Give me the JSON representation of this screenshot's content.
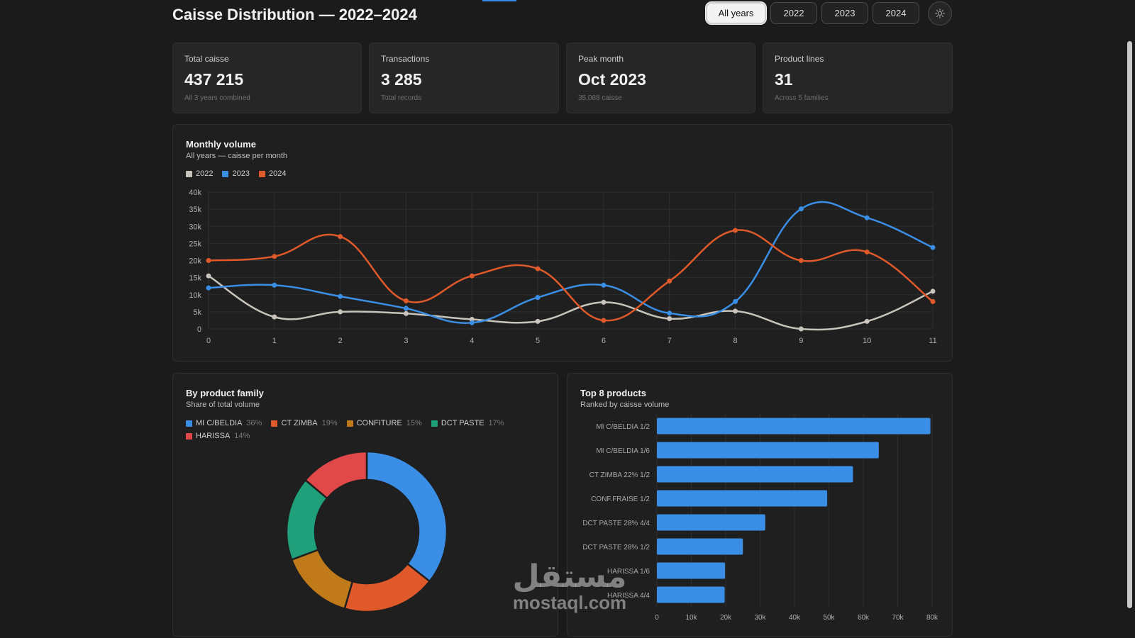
{
  "header": {
    "title": "Caisse Distribution — 2022–2024",
    "year_buttons": [
      "All years",
      "2022",
      "2023",
      "2024"
    ],
    "active_year": "All years"
  },
  "stats": [
    {
      "label": "Total caisse",
      "value": "437 215",
      "sub": "All 3 years combined"
    },
    {
      "label": "Transactions",
      "value": "3 285",
      "sub": "Total records"
    },
    {
      "label": "Peak month",
      "value": "Oct 2023",
      "sub": "35,088 caisse"
    },
    {
      "label": "Product lines",
      "value": "31",
      "sub": "Across 5 families"
    }
  ],
  "monthly": {
    "title": "Monthly volume",
    "subtitle": "All years — caisse per month"
  },
  "family": {
    "title": "By product family",
    "subtitle": "Share of total volume"
  },
  "top": {
    "title": "Top 8 products",
    "subtitle": "Ranked by caisse volume"
  },
  "watermark": {
    "logo": "مستقل",
    "text": "mostaql.com"
  },
  "chart_data": [
    {
      "type": "line",
      "x": [
        0,
        1,
        2,
        3,
        4,
        5,
        6,
        7,
        8,
        9,
        10,
        11
      ],
      "ylim": [
        0,
        40000
      ],
      "yticks": [
        0,
        5000,
        10000,
        15000,
        20000,
        25000,
        30000,
        35000,
        40000
      ],
      "ytick_labels": [
        "0",
        "5k",
        "10k",
        "15k",
        "20k",
        "25k",
        "30k",
        "35k",
        "40k"
      ],
      "grid": true,
      "legend": "top-left",
      "series": [
        {
          "name": "2022",
          "color": "#c8c4bc",
          "values": [
            15500,
            3500,
            5000,
            4500,
            2800,
            2200,
            7800,
            3000,
            5200,
            0,
            2200,
            11000
          ]
        },
        {
          "name": "2023",
          "color": "#3a8ee6",
          "values": [
            12000,
            12800,
            9500,
            6000,
            1800,
            9200,
            12800,
            4600,
            8000,
            35100,
            32500,
            23800
          ]
        },
        {
          "name": "2024",
          "color": "#e0592a",
          "values": [
            20000,
            21200,
            27000,
            8200,
            15500,
            17600,
            2500,
            14000,
            28800,
            20000,
            22500,
            8000
          ]
        }
      ]
    },
    {
      "type": "pie",
      "donut": true,
      "legend": "top-left",
      "slices": [
        {
          "label": "MI C/BELDIA",
          "percent": "36%",
          "value": 36,
          "color": "#3a8ee6"
        },
        {
          "label": "CT ZIMBA",
          "percent": "19%",
          "value": 19,
          "color": "#e0592a"
        },
        {
          "label": "CONFITURE",
          "percent": "15%",
          "value": 15,
          "color": "#c07a1a"
        },
        {
          "label": "DCT PASTE",
          "percent": "17%",
          "value": 17,
          "color": "#1fa07a"
        },
        {
          "label": "HARISSA",
          "percent": "14%",
          "value": 14,
          "color": "#e0484a"
        }
      ]
    },
    {
      "type": "bar",
      "orientation": "horizontal",
      "color": "#3a8ee6",
      "categories": [
        "MI C/BELDIA 1/2",
        "MI C/BELDIA 1/6",
        "CT ZIMBA 22% 1/2",
        "CONF.FRAISE 1/2",
        "DCT PASTE 28% 4/4",
        "DCT PASTE 28% 1/2",
        "HARISSA 1/6",
        "HARISSA 4/4"
      ],
      "values": [
        79500,
        64500,
        57000,
        49500,
        31500,
        25000,
        19800,
        19700
      ],
      "xlim": [
        0,
        80000
      ],
      "xticks": [
        0,
        10000,
        20000,
        30000,
        40000,
        50000,
        60000,
        70000,
        80000
      ],
      "xtick_labels": [
        "0",
        "10k",
        "20k",
        "30k",
        "40k",
        "50k",
        "60k",
        "70k",
        "80k"
      ],
      "grid": true
    }
  ]
}
